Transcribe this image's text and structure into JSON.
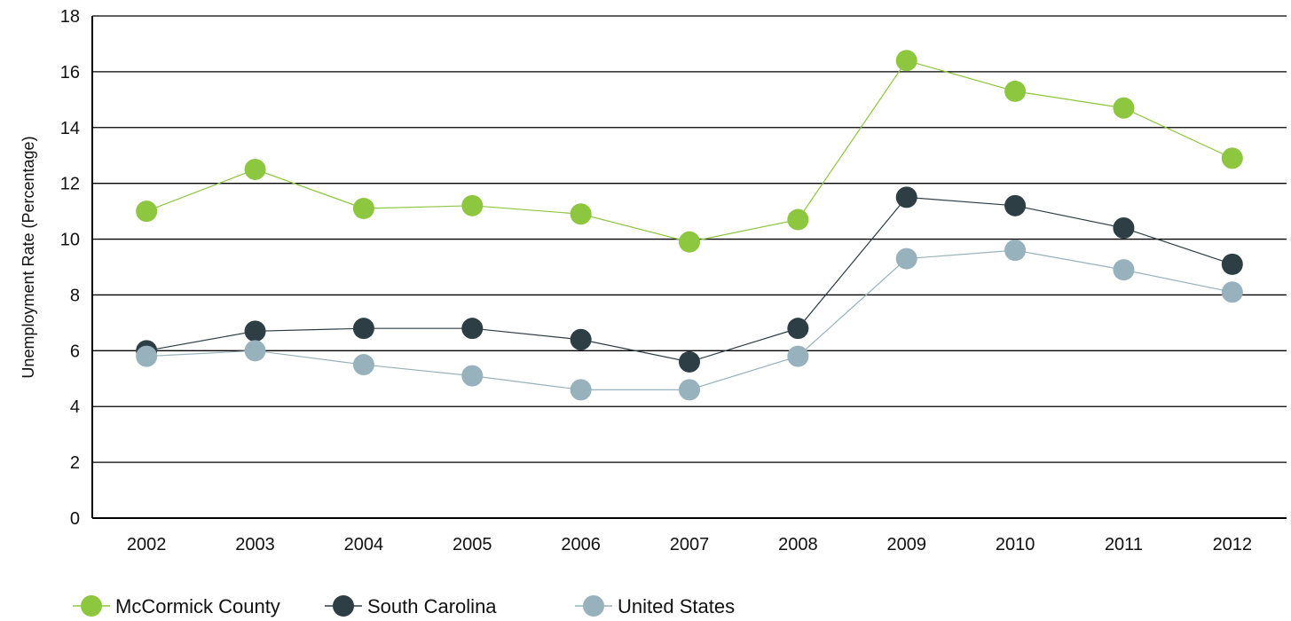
{
  "chart_data": {
    "type": "line",
    "title": "",
    "xlabel": "",
    "ylabel": "Unemployment Rate (Percentage)",
    "ylim": [
      0,
      18
    ],
    "yticks": [
      0,
      2,
      4,
      6,
      8,
      10,
      12,
      14,
      16,
      18
    ],
    "grid": "horizontal",
    "legend_position": "bottom-left",
    "categories": [
      "2002",
      "2003",
      "2004",
      "2005",
      "2006",
      "2007",
      "2008",
      "2009",
      "2010",
      "2011",
      "2012"
    ],
    "series": [
      {
        "name": "McCormick County",
        "color": "#8dc63f",
        "values": [
          11.0,
          12.5,
          11.1,
          11.2,
          10.9,
          9.9,
          10.7,
          16.4,
          15.3,
          14.7,
          12.9
        ]
      },
      {
        "name": "South Carolina",
        "color": "#2d3e45",
        "values": [
          6.0,
          6.7,
          6.8,
          6.8,
          6.4,
          5.6,
          6.8,
          11.5,
          11.2,
          10.4,
          9.1
        ]
      },
      {
        "name": "United States",
        "color": "#97b2bc",
        "values": [
          5.8,
          6.0,
          5.5,
          5.1,
          4.6,
          4.6,
          5.8,
          9.3,
          9.6,
          8.9,
          8.1
        ]
      }
    ]
  }
}
